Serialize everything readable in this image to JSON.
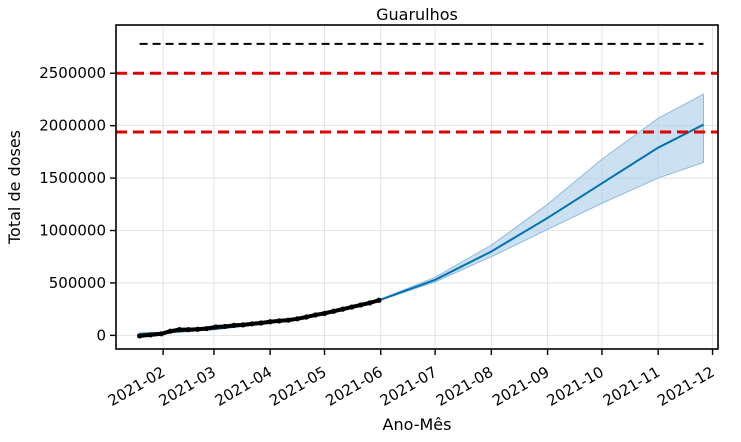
{
  "chart_data": {
    "type": "line",
    "title": "Guarulhos",
    "xlabel": "Ano-Mês",
    "ylabel": "Total de doses",
    "x_axis_type": "date",
    "xlim": [
      "2021-01-06",
      "2021-12-04"
    ],
    "ylim": [
      -130000,
      2960000
    ],
    "grid": true,
    "x_ticks": [
      "2021-02",
      "2021-03",
      "2021-04",
      "2021-05",
      "2021-06",
      "2021-07",
      "2021-08",
      "2021-09",
      "2021-10",
      "2021-11",
      "2021-12"
    ],
    "y_ticks": [
      0,
      500000,
      1000000,
      1500000,
      2000000,
      2500000
    ],
    "y_tick_labels": [
      "0",
      "500000",
      "1000000",
      "1500000",
      "2000000",
      "2500000"
    ],
    "series": [
      {
        "role": "observed",
        "style": "black-points",
        "color": "#000000",
        "x": [
          "2021-01-19",
          "2021-01-25",
          "2021-01-31",
          "2021-02-05",
          "2021-02-10",
          "2021-02-15",
          "2021-02-20",
          "2021-02-25",
          "2021-03-02",
          "2021-03-07",
          "2021-03-12",
          "2021-03-17",
          "2021-03-22",
          "2021-03-27",
          "2021-04-01",
          "2021-04-06",
          "2021-04-11",
          "2021-04-16",
          "2021-04-21",
          "2021-04-26",
          "2021-05-01",
          "2021-05-06",
          "2021-05-11",
          "2021-05-16",
          "2021-05-21",
          "2021-05-26",
          "2021-05-31"
        ],
        "y": [
          -5000,
          5000,
          15000,
          40000,
          55000,
          55000,
          58000,
          65000,
          80000,
          85000,
          95000,
          100000,
          110000,
          118000,
          130000,
          138000,
          145000,
          158000,
          175000,
          195000,
          210000,
          230000,
          250000,
          270000,
          290000,
          310000,
          335000
        ]
      },
      {
        "role": "forecast",
        "style": "line",
        "color": "#0072b2",
        "x": [
          "2021-01-19",
          "2021-02-01",
          "2021-03-01",
          "2021-04-01",
          "2021-05-01",
          "2021-06-01",
          "2021-07-01",
          "2021-08-01",
          "2021-09-01",
          "2021-10-01",
          "2021-11-01",
          "2021-11-26"
        ],
        "y": [
          15000,
          25000,
          60000,
          120000,
          210000,
          340000,
          530000,
          800000,
          1120000,
          1450000,
          1790000,
          2010000
        ]
      }
    ],
    "uncertainty_band": {
      "color": "#a8cbe6",
      "x": [
        "2021-06-01",
        "2021-07-01",
        "2021-08-01",
        "2021-09-01",
        "2021-10-01",
        "2021-11-01",
        "2021-11-26"
      ],
      "lower": [
        335000,
        510000,
        750000,
        1010000,
        1260000,
        1500000,
        1650000
      ],
      "upper": [
        345000,
        555000,
        860000,
        1250000,
        1680000,
        2070000,
        2300000
      ]
    },
    "reference_lines": [
      {
        "y": 2780000,
        "color": "#000000",
        "style": "dashed",
        "x_from": "2021-01-19",
        "x_to": "2021-11-26"
      },
      {
        "y": 2500000,
        "color": "#e00000",
        "style": "dashed"
      },
      {
        "y": 1940000,
        "color": "#e00000",
        "style": "dashed"
      }
    ]
  }
}
